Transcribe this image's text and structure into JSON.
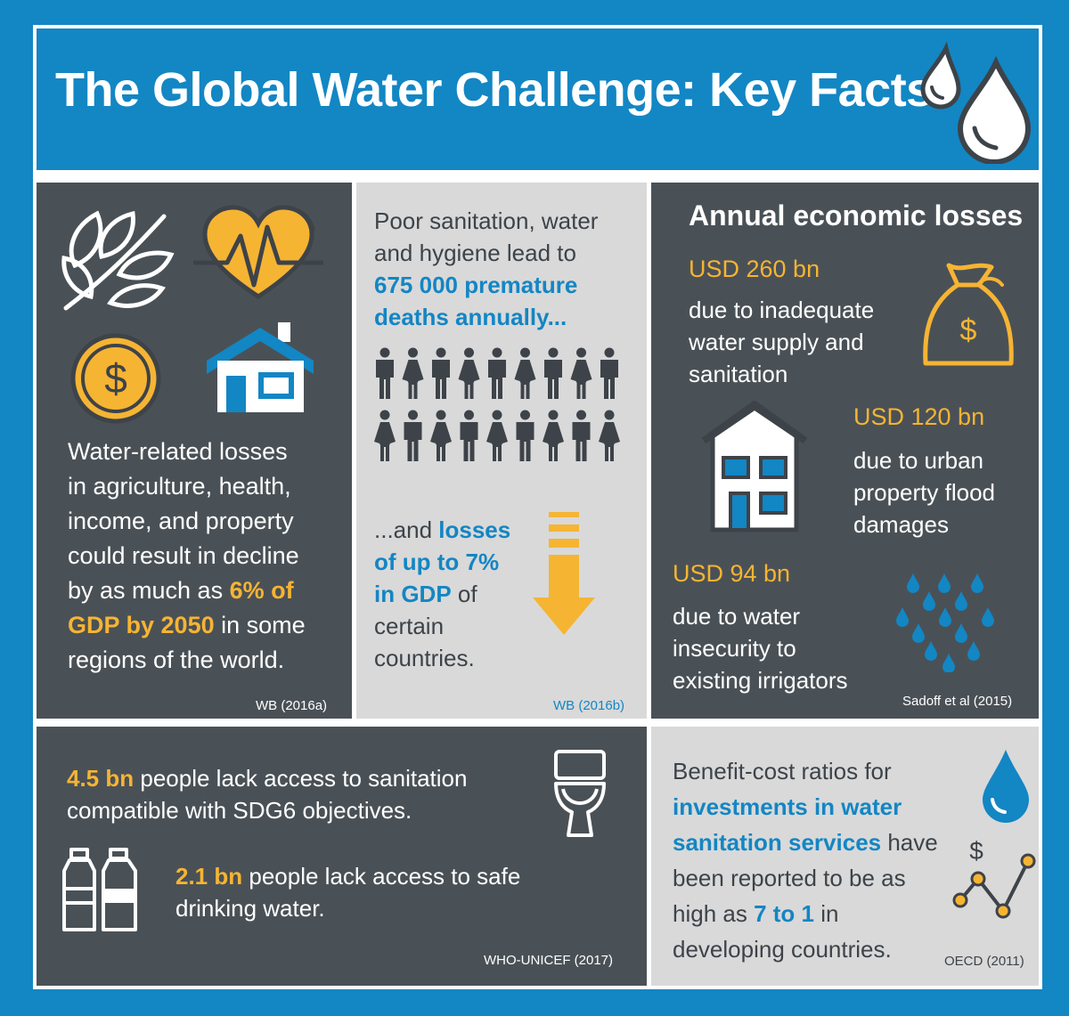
{
  "title": "The Global Water Challenge: Key Facts",
  "colors": {
    "brand_blue": "#1386c4",
    "accent_yellow": "#f6b433",
    "panel_dark": "#4a5156",
    "panel_light": "#d9d9d9"
  },
  "panel_losses": {
    "text_a": "Water-related losses",
    "text_b": "in agriculture, health,",
    "text_c": "income, and property",
    "text_d": "could result in decline",
    "text_e": "by as much as ",
    "highlight_e": "6% of",
    "highlight_f": "GDP by 2050",
    "text_f": " in some",
    "text_g": "regions of the world.",
    "source": "WB (2016a)",
    "icons": [
      "leaves-icon",
      "heart-rate-icon",
      "dollar-coin-icon",
      "house-icon"
    ]
  },
  "panel_sanitation": {
    "line1": "Poor sanitation, water",
    "line2": "and hygiene lead to",
    "highlight1": "675 000 premature",
    "highlight2": "deaths annually...",
    "line3_pre": "...and ",
    "line3_hl": "losses",
    "highlight3": "of up to 7%",
    "highlight4": "in GDP",
    "line4_post": " of",
    "line5": "certain",
    "line6": "countries.",
    "source": "WB (2016b)",
    "icons": [
      "people-icon",
      "down-arrow-icon"
    ]
  },
  "panel_economic": {
    "heading": "Annual economic losses",
    "items": [
      {
        "amount": "USD 260 bn",
        "lines": [
          "due to inadequate",
          "water supply and",
          "sanitation"
        ]
      },
      {
        "amount": "USD 120 bn",
        "lines": [
          "due to urban",
          "property flood",
          "damages"
        ]
      },
      {
        "amount": "USD 94 bn",
        "lines": [
          "due to water",
          "insecurity to",
          "existing irrigators"
        ]
      }
    ],
    "source": "Sadoff et al (2015)",
    "icons": [
      "money-bag-icon",
      "building-icon",
      "rain-drops-icon"
    ]
  },
  "panel_access": {
    "stat1_hl": "4.5 bn",
    "stat1_text": " people lack access to sanitation",
    "stat1_line2": "compatible with SDG6 objectives.",
    "stat2_hl": "2.1 bn",
    "stat2_text": " people lack access to safe",
    "stat2_line2": "drinking water.",
    "source": "WHO-UNICEF (2017)",
    "icons": [
      "toilet-icon",
      "bottles-icon"
    ]
  },
  "panel_benefit": {
    "line1": "Benefit-cost ratios for",
    "hl1": "investments in water",
    "hl2": "sanitation services",
    "line3_post": " have",
    "line4": "been reported to be as",
    "line5_pre": "high as ",
    "hl3": "7 to 1",
    "line5_post": " in",
    "line6": "developing countries.",
    "source": "OECD (2011)",
    "icons": [
      "water-drop-icon",
      "growth-chart-icon"
    ]
  }
}
